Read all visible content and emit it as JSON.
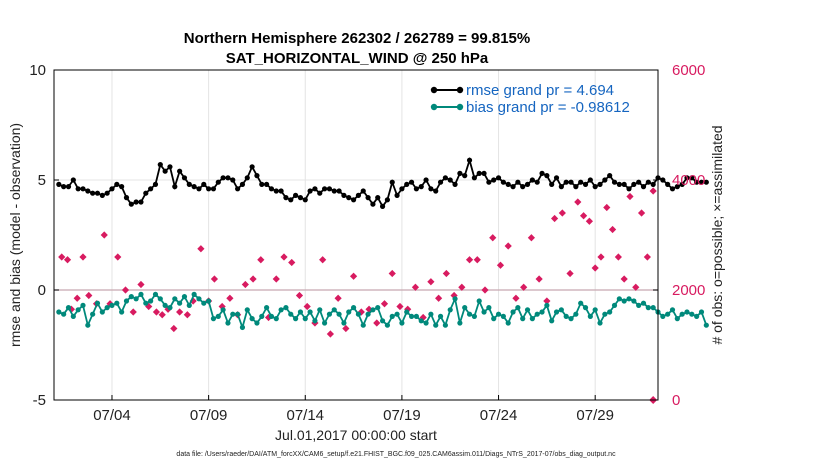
{
  "chart_data": {
    "type": "line",
    "title_line1": "Northern Hemisphere 262302 / 262789 = 99.815%",
    "title_line2": "SAT_HORIZONTAL_WIND @ 250 hPa",
    "xlabel": "Jul.01,2017 00:00:00 start",
    "ylabel": "rmse and bias (model - observation)",
    "ylabel_right": "# of obs: o=possible; ×=assimilated",
    "footer": "data file: /Users/raeder/DAI/ATM_forcXX/CAM6_setup/f.e21.FHIST_BGC.f09_025.CAM6assim.011/Diags_NTrS_2017-07/obs_diag_output.nc",
    "xlim": [
      0,
      31.25
    ],
    "ylim": [
      -5,
      10
    ],
    "ylim_right": [
      0,
      6000
    ],
    "x_ticks": [
      {
        "day": 3.0,
        "label": "07/04"
      },
      {
        "day": 8.0,
        "label": "07/09"
      },
      {
        "day": 13.0,
        "label": "07/14"
      },
      {
        "day": 18.0,
        "label": "07/19"
      },
      {
        "day": 23.0,
        "label": "07/24"
      },
      {
        "day": 28.0,
        "label": "07/29"
      }
    ],
    "y_ticks": [
      {
        "value": -5,
        "label": "-5"
      },
      {
        "value": 0,
        "label": "0"
      },
      {
        "value": 5,
        "label": "5"
      },
      {
        "value": 10,
        "label": "10"
      }
    ],
    "y_ticks_right": [
      {
        "value": 0,
        "label": "0"
      },
      {
        "value": 2000,
        "label": "2000"
      },
      {
        "value": 4000,
        "label": "4000"
      },
      {
        "value": 6000,
        "label": "6000"
      }
    ],
    "legend": [
      {
        "label": "rmse grand pr = 4.694",
        "color": "#000000"
      },
      {
        "label": "bias grand pr = -0.98612",
        "color": "#00897B"
      }
    ],
    "series": [
      {
        "name": "rmse",
        "color": "#000000",
        "x_start": 0.25,
        "x_step": 0.25,
        "values": [
          4.8,
          4.7,
          4.7,
          5.0,
          4.6,
          4.6,
          4.5,
          4.4,
          4.4,
          4.3,
          4.4,
          4.6,
          4.8,
          4.7,
          4.2,
          3.9,
          4.0,
          4.0,
          4.4,
          4.6,
          4.8,
          5.7,
          5.4,
          5.6,
          4.7,
          5.4,
          5.1,
          4.8,
          4.7,
          4.6,
          4.8,
          4.6,
          4.6,
          4.9,
          5.1,
          5.1,
          5.0,
          4.6,
          4.8,
          5.1,
          5.6,
          5.2,
          4.8,
          4.8,
          4.6,
          4.5,
          4.5,
          4.2,
          4.1,
          4.3,
          4.2,
          4.1,
          4.5,
          4.6,
          4.4,
          4.6,
          4.6,
          4.5,
          4.5,
          4.3,
          4.2,
          4.1,
          4.3,
          4.5,
          4.2,
          3.9,
          4.2,
          3.8,
          4.1,
          4.9,
          4.3,
          4.6,
          4.8,
          4.9,
          4.6,
          4.7,
          5.0,
          4.6,
          4.5,
          4.9,
          5.1,
          5.0,
          4.8,
          5.3,
          5.2,
          5.9,
          5.1,
          5.3,
          5.3,
          4.9,
          5.0,
          5.1,
          4.9,
          4.8,
          4.7,
          4.9,
          4.7,
          4.8,
          5.0,
          4.9,
          5.3,
          5.2,
          4.8,
          5.1,
          4.7,
          4.9,
          4.9,
          4.7,
          4.9,
          4.8,
          5.0,
          4.7,
          4.8,
          5.0,
          5.2,
          4.9,
          4.8,
          4.8,
          4.6,
          4.8,
          4.9,
          4.7,
          4.9,
          4.8,
          5.1,
          5.0,
          4.8,
          4.6,
          4.7,
          4.8,
          5.1,
          5.1,
          4.9,
          4.9,
          4.9
        ]
      },
      {
        "name": "bias",
        "color": "#00897B",
        "x_start": 0.25,
        "x_step": 0.25,
        "values": [
          -1.0,
          -1.1,
          -0.8,
          -1.2,
          -0.9,
          -0.7,
          -1.6,
          -1.1,
          -0.6,
          -1.0,
          -0.8,
          -0.7,
          -0.6,
          -1.0,
          -0.5,
          -0.3,
          -0.4,
          -0.2,
          -0.6,
          -0.5,
          -0.2,
          -0.4,
          -0.7,
          -0.8,
          -0.4,
          -0.6,
          -0.3,
          -0.7,
          -0.2,
          -0.4,
          -0.6,
          -0.5,
          -1.3,
          -1.2,
          -0.9,
          -1.5,
          -1.1,
          -1.1,
          -1.7,
          -0.9,
          -1.3,
          -1.5,
          -1.2,
          -0.8,
          -1.2,
          -1.3,
          -0.9,
          -0.8,
          -1.1,
          -1.3,
          -1.0,
          -1.3,
          -1.0,
          -1.4,
          -0.9,
          -1.5,
          -1.1,
          -0.9,
          -1.1,
          -1.5,
          -1.0,
          -0.8,
          -1.1,
          -1.6,
          -1.1,
          -0.9,
          -0.8,
          -1.4,
          -1.6,
          -1.2,
          -1.1,
          -1.5,
          -1.0,
          -1.2,
          -1.2,
          -1.4,
          -1.5,
          -1.1,
          -1.6,
          -1.2,
          -1.6,
          -0.9,
          -0.4,
          -1.5,
          -0.8,
          -1.1,
          -1.2,
          -0.5,
          -1.0,
          -0.8,
          -1.3,
          -1.1,
          -1.2,
          -1.5,
          -1.0,
          -0.8,
          -1.3,
          -0.9,
          -1.3,
          -1.1,
          -1.0,
          -0.7,
          -1.4,
          -1.0,
          -0.9,
          -1.2,
          -1.3,
          -1.1,
          -0.6,
          -0.8,
          -1.2,
          -0.9,
          -1.5,
          -1.1,
          -1.0,
          -0.7,
          -0.4,
          -0.5,
          -0.4,
          -0.5,
          -0.7,
          -0.6,
          -0.8,
          -0.8,
          -1.0,
          -1.2,
          -1.1,
          -0.9,
          -1.3,
          -1.1,
          -1.0,
          -1.1,
          -1.2,
          -1.0,
          -1.6
        ]
      }
    ],
    "obs_counts": {
      "color": "#D81B60",
      "x": [
        0.4,
        0.7,
        0.9,
        1.2,
        1.5,
        1.8,
        2.2,
        2.6,
        2.9,
        3.3,
        3.7,
        4.1,
        4.5,
        4.9,
        5.3,
        5.6,
        5.9,
        6.2,
        6.5,
        6.9,
        7.2,
        7.6,
        8.0,
        8.3,
        8.7,
        9.1,
        9.5,
        9.9,
        10.3,
        10.7,
        11.1,
        11.5,
        11.9,
        12.3,
        12.7,
        13.1,
        13.5,
        13.9,
        14.3,
        14.7,
        15.1,
        15.5,
        15.9,
        16.3,
        16.7,
        17.1,
        17.5,
        17.9,
        18.3,
        18.7,
        19.1,
        19.5,
        19.9,
        20.3,
        20.7,
        21.1,
        21.5,
        21.9,
        22.3,
        22.7,
        23.1,
        23.5,
        23.9,
        24.3,
        24.7,
        25.1,
        25.5,
        25.9,
        26.3,
        26.7,
        27.1,
        27.4,
        27.7,
        28.0,
        28.3,
        28.6,
        28.9,
        29.2,
        29.5,
        29.8,
        30.1,
        30.4,
        30.7,
        31.0
      ],
      "values": [
        2600,
        2550,
        1650,
        1850,
        2600,
        1900,
        1750,
        3000,
        1750,
        2600,
        2000,
        1600,
        2100,
        1700,
        1600,
        1550,
        1650,
        1300,
        1600,
        1550,
        1800,
        2750,
        1800,
        2200,
        1700,
        1850,
        1550,
        2100,
        2200,
        2550,
        1500,
        2200,
        2600,
        2500,
        1900,
        1700,
        1400,
        2550,
        1200,
        1850,
        1300,
        2250,
        1600,
        1650,
        1400,
        1750,
        2300,
        1700,
        1650,
        2050,
        1500,
        2150,
        1850,
        2300,
        1900,
        2050,
        2550,
        2550,
        2000,
        2950,
        2450,
        2800,
        1850,
        2050,
        2950,
        2200,
        1800,
        3300,
        3400,
        2300,
        3600,
        3350,
        3250,
        2400,
        2600,
        3500,
        3100,
        2600,
        2200,
        3700,
        2050,
        3400,
        2600,
        3800
      ]
    }
  }
}
